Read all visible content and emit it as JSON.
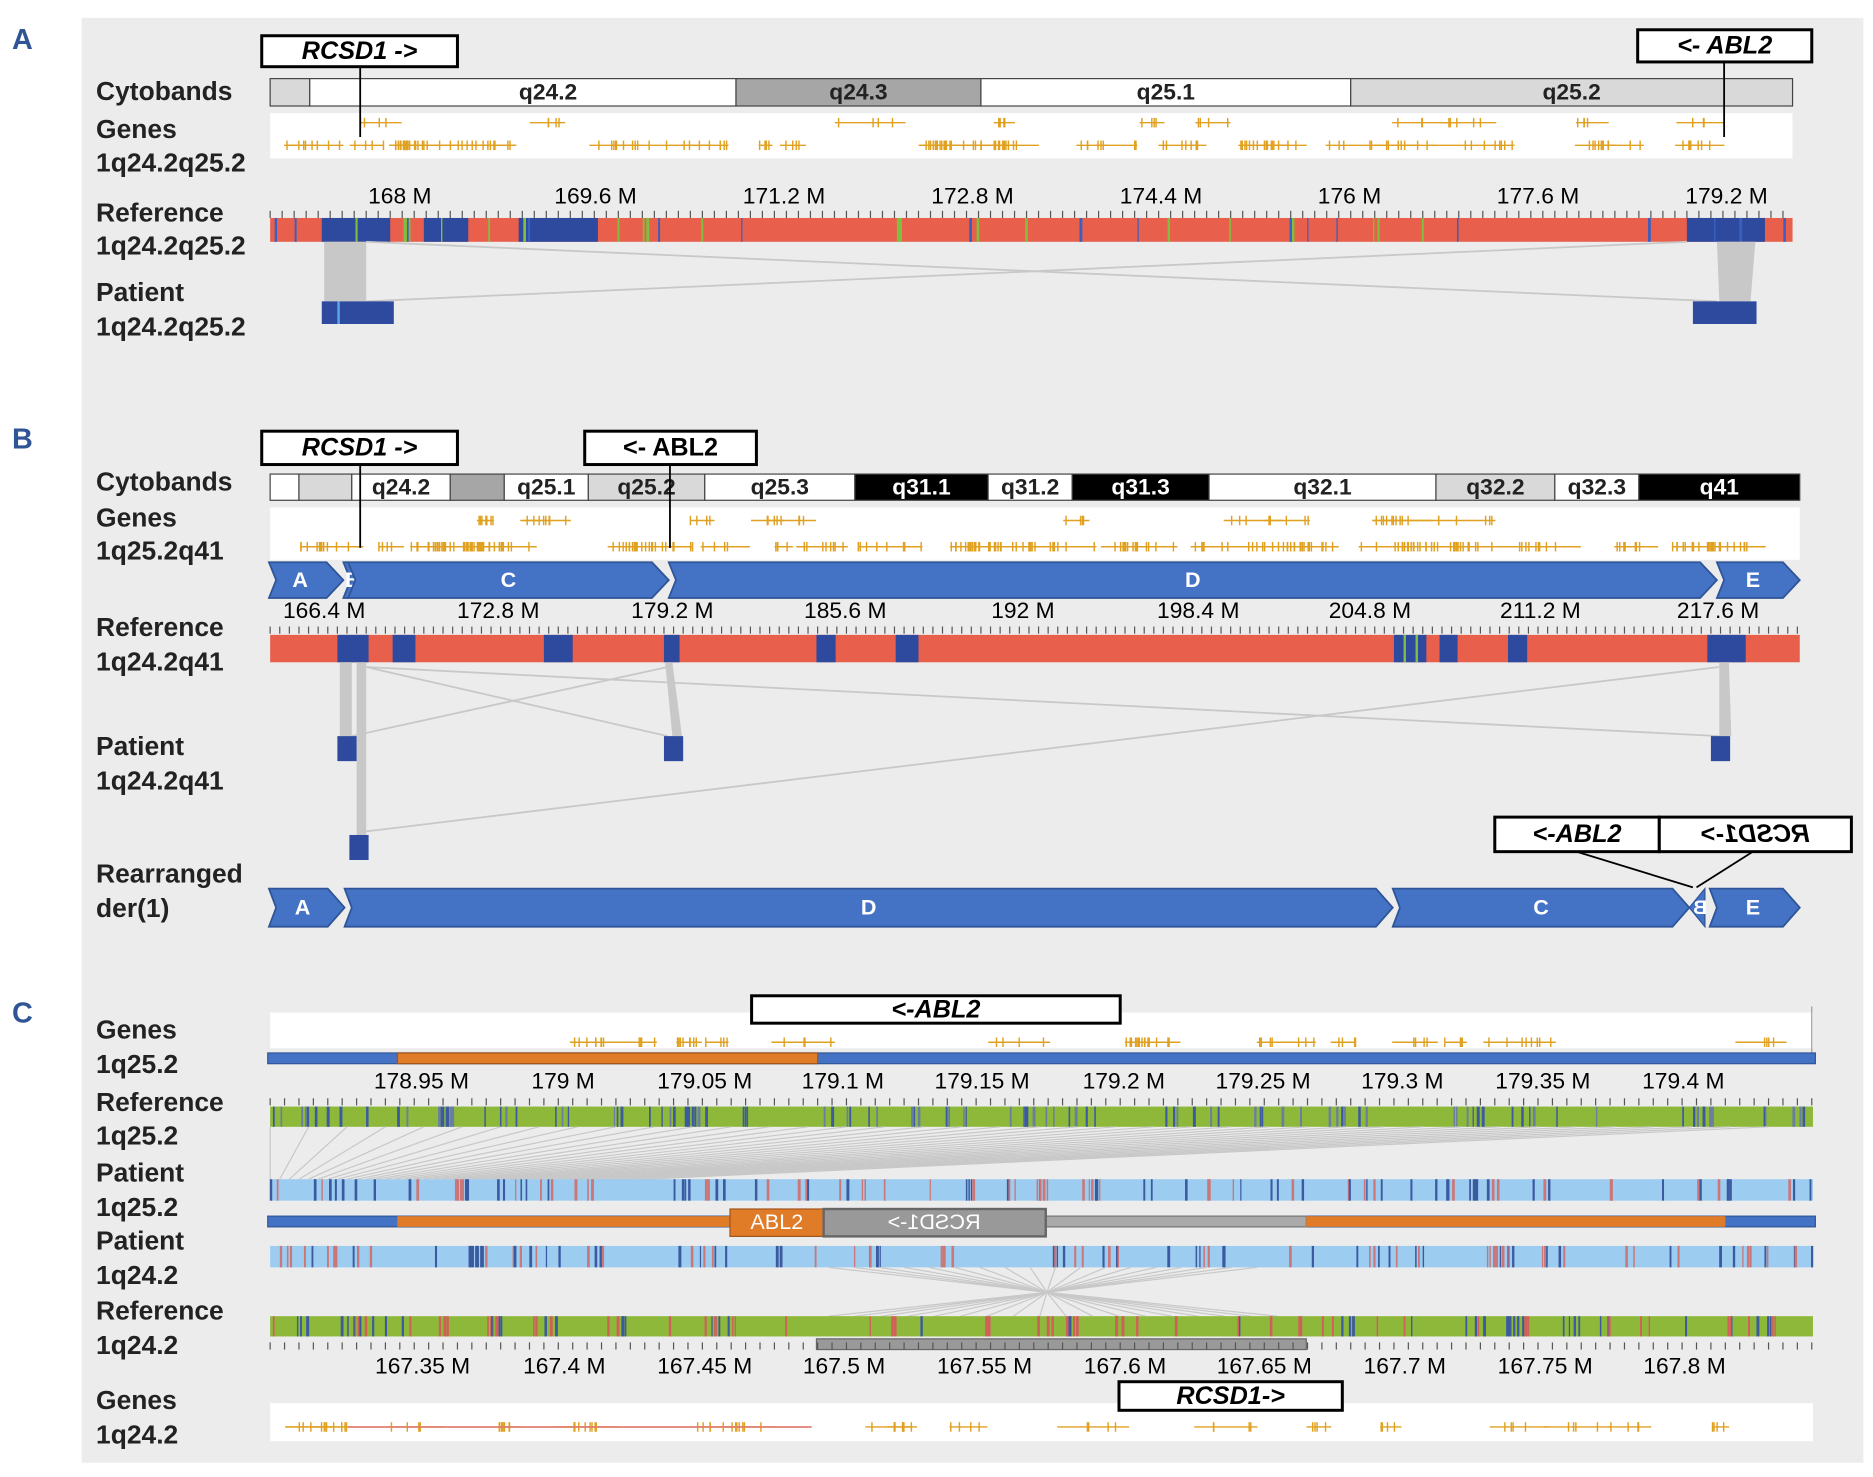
{
  "panel_a": {
    "letter": "A",
    "gene_boxes": [
      "RCSD1 ->",
      "<- ABL2"
    ],
    "labels": [
      "Cytobands",
      "Genes",
      "1q24.2q25.2",
      "Reference",
      "1q24.2q25.2",
      "Patient",
      "1q24.2q25.2"
    ],
    "cytobands": [
      "q24.2",
      "q24.3",
      "q25.1",
      "q25.2"
    ],
    "ticks": [
      "168 M",
      "169.6 M",
      "171.2 M",
      "172.8 M",
      "174.4 M",
      "176 M",
      "177.6 M",
      "179.2 M"
    ]
  },
  "panel_b": {
    "letter": "B",
    "gene_boxes": [
      "RCSD1 ->",
      "<- ABL2"
    ],
    "labels": [
      "Cytobands",
      "Genes",
      "1q25.2q41",
      "Reference",
      "1q24.2q41",
      "Patient",
      "1q24.2q41",
      "Rearranged",
      "der(1)"
    ],
    "cytobands": [
      "q24.2",
      "q25.1",
      "q25.2",
      "q25.3",
      "q31.1",
      "q31.2",
      "q31.3",
      "q32.1",
      "q32.2",
      "q32.3",
      "q41"
    ],
    "segments": [
      "A",
      "B",
      "C",
      "D",
      "E"
    ],
    "ticks": [
      "166.4 M",
      "172.8 M",
      "179.2 M",
      "185.6 M",
      "192 M",
      "198.4 M",
      "204.8 M",
      "211.2 M",
      "217.6 M"
    ],
    "rearranged_segments": [
      "A",
      "D",
      "C",
      "B",
      "E"
    ],
    "fusion_boxes": [
      "<-ABL2",
      "RCSD1->"
    ]
  },
  "panel_c": {
    "letter": "C",
    "gene_boxes": [
      "<-ABL2",
      "RCSD1->"
    ],
    "labels": [
      "Genes",
      "1q25.2",
      "Reference",
      "1q25.2",
      "Patient",
      "1q25.2",
      "Patient",
      "1q24.2",
      "Reference",
      "1q24.2",
      "Genes",
      "1q24.2"
    ],
    "top_ticks": [
      "178.95 M",
      "179 M",
      "179.05 M",
      "179.1 M",
      "179.15 M",
      "179.2 M",
      "179.25 M",
      "179.3 M",
      "179.35 M",
      "179.4 M"
    ],
    "bottom_ticks": [
      "167.35 M",
      "167.4 M",
      "167.45 M",
      "167.5 M",
      "167.55 M",
      "167.6 M",
      "167.65 M",
      "167.7 M",
      "167.75 M",
      "167.8 M"
    ],
    "fusion_labels": [
      "ABL2",
      "RCSD1->"
    ]
  }
}
